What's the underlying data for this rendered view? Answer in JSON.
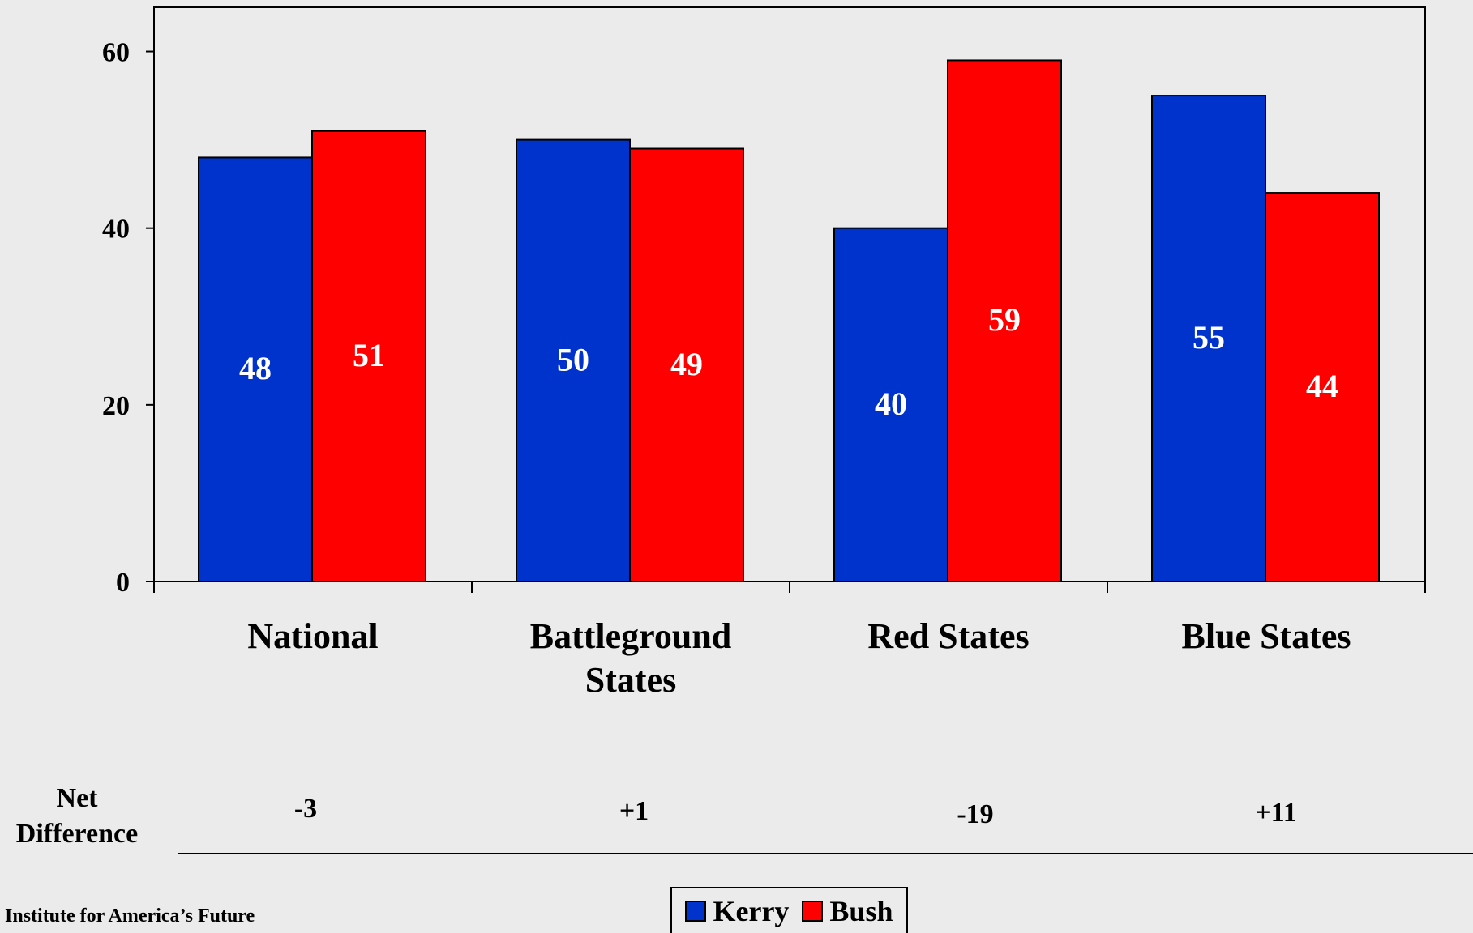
{
  "chart_data": {
    "type": "bar",
    "categories": [
      "National",
      "Battleground States",
      "Red States",
      "Blue States"
    ],
    "series": [
      {
        "name": "Kerry",
        "values": [
          48,
          50,
          40,
          55
        ],
        "color": "#0033cc"
      },
      {
        "name": "Bush",
        "values": [
          51,
          49,
          59,
          44
        ],
        "color": "#ff0000"
      }
    ],
    "y_ticks": [
      "0",
      "20",
      "40",
      "60"
    ],
    "ylim": [
      0,
      65
    ],
    "grid": false,
    "legend_position": "bottom",
    "title": "",
    "xlabel": "",
    "ylabel": ""
  },
  "net_difference": {
    "label_line1": "Net",
    "label_line2": "Difference",
    "values": [
      "-3",
      "+1",
      "-19",
      "+11"
    ]
  },
  "legend": {
    "kerry": "Kerry",
    "bush": "Bush"
  },
  "footer": {
    "source": "Institute for America’s Future"
  }
}
